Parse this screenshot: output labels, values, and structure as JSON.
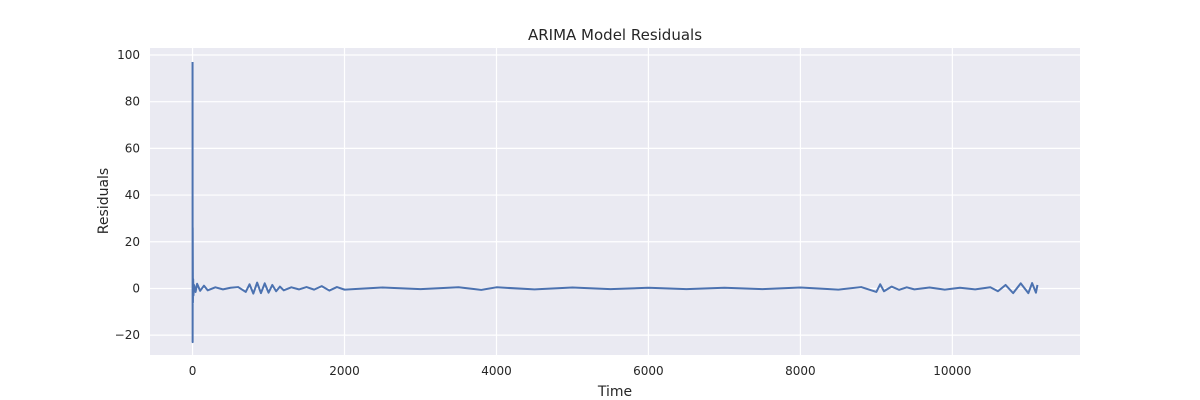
{
  "chart_data": {
    "type": "line",
    "title": "ARIMA Model Residuals",
    "xlabel": "Time",
    "ylabel": "Residuals",
    "xlim": [
      -560,
      11680
    ],
    "ylim": [
      -28.5,
      103
    ],
    "xticks": [
      0,
      2000,
      4000,
      6000,
      8000,
      10000
    ],
    "yticks": [
      -20,
      0,
      20,
      40,
      60,
      80,
      100
    ],
    "grid": true,
    "legend": "none",
    "colors": {
      "line": "#4c72b0",
      "plot_background": "#eaeaf2",
      "grid": "#ffffff"
    },
    "series": [
      {
        "x": [
          0,
          1,
          2,
          3,
          5,
          8,
          12,
          20,
          40,
          60,
          100,
          150,
          200,
          300,
          400,
          500,
          600,
          700,
          750,
          800,
          850,
          900,
          950,
          1000,
          1050,
          1100,
          1150,
          1200,
          1300,
          1400,
          1500,
          1600,
          1700,
          1800,
          1900,
          2000,
          2500,
          3000,
          3500,
          3800,
          4000,
          4500,
          5000,
          5500,
          6000,
          6500,
          7000,
          7500,
          8000,
          8500,
          8800,
          9000,
          9050,
          9100,
          9200,
          9300,
          9400,
          9500,
          9700,
          9900,
          10100,
          10300,
          10500,
          10600,
          10700,
          10800,
          10900,
          11000,
          11050,
          11100,
          11120
        ],
        "y": [
          97,
          -23,
          26,
          15,
          -6,
          4,
          -3,
          1.5,
          -1.5,
          2,
          -1,
          1.2,
          -0.8,
          0.5,
          -0.4,
          0.3,
          0.6,
          -1.5,
          1.8,
          -2.2,
          2.5,
          -2,
          2.2,
          -1.8,
          1.5,
          -1.2,
          0.8,
          -0.8,
          0.5,
          -0.4,
          0.6,
          -0.5,
          1,
          -0.9,
          0.6,
          -0.5,
          0.4,
          -0.3,
          0.5,
          -0.6,
          0.5,
          -0.4,
          0.4,
          -0.3,
          0.3,
          -0.3,
          0.3,
          -0.3,
          0.4,
          -0.5,
          0.6,
          -1.5,
          1.8,
          -1.2,
          0.8,
          -0.6,
          0.5,
          -0.4,
          0.4,
          -0.5,
          0.3,
          -0.4,
          0.5,
          -1.2,
          1.5,
          -2,
          2.2,
          -2,
          2.3,
          -1.8,
          1.5
        ]
      }
    ]
  }
}
